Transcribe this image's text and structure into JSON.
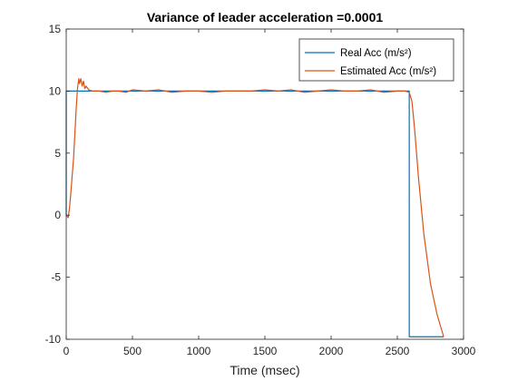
{
  "chart_data": {
    "type": "line",
    "title": "Variance of leader acceleration =0.0001",
    "xlabel": "Time (msec)",
    "ylabel": "",
    "xlim": [
      0,
      3000
    ],
    "ylim": [
      -10,
      15
    ],
    "xticks": [
      0,
      500,
      1000,
      1500,
      2000,
      2500,
      3000
    ],
    "yticks": [
      -10,
      -5,
      0,
      5,
      10,
      15
    ],
    "grid": false,
    "legend_position": "top-right",
    "series": [
      {
        "name": "Real Acc (m/s²)",
        "color": "#0072BD",
        "x": [
          0,
          0,
          2590,
          2590,
          2850
        ],
        "y": [
          0,
          10,
          10,
          -9.8,
          -9.8
        ]
      },
      {
        "name": "Estimated Acc (m/s²)",
        "color": "#D95319",
        "x": [
          0,
          15,
          25,
          35,
          45,
          55,
          65,
          75,
          85,
          95,
          100,
          110,
          120,
          130,
          140,
          150,
          170,
          200,
          250,
          300,
          350,
          400,
          450,
          500,
          600,
          700,
          800,
          900,
          1000,
          1100,
          1200,
          1300,
          1400,
          1500,
          1600,
          1700,
          1800,
          1900,
          2000,
          2100,
          2200,
          2300,
          2400,
          2500,
          2560,
          2590,
          2610,
          2630,
          2660,
          2700,
          2750,
          2800,
          2850
        ],
        "y": [
          0,
          -0.2,
          0.6,
          1.8,
          3.2,
          4.5,
          6.5,
          8.5,
          10.2,
          11.0,
          10.6,
          11.0,
          10.4,
          10.8,
          10.2,
          10.4,
          10.1,
          10.0,
          10.0,
          9.9,
          10.0,
          10.0,
          9.9,
          10.1,
          10.0,
          10.1,
          9.9,
          10.0,
          10.0,
          9.9,
          10.0,
          10.0,
          10.0,
          10.1,
          10.0,
          10.1,
          9.9,
          10.0,
          10.1,
          10.0,
          10.0,
          10.1,
          9.9,
          10.0,
          10.0,
          9.9,
          9.2,
          7.0,
          3.0,
          -1.5,
          -5.5,
          -8.0,
          -9.8
        ]
      }
    ]
  }
}
